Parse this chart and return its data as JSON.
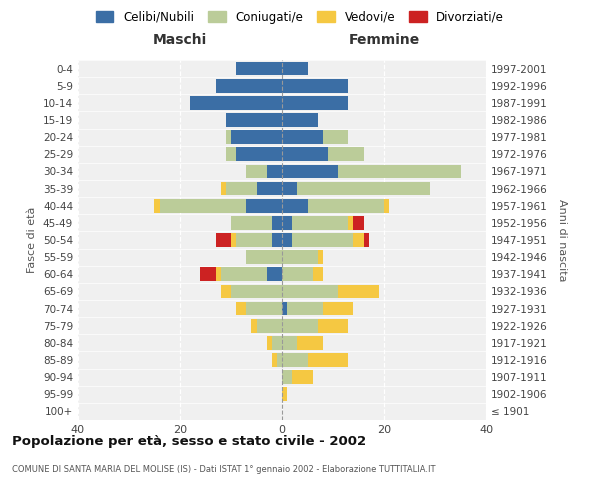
{
  "age_groups": [
    "100+",
    "95-99",
    "90-94",
    "85-89",
    "80-84",
    "75-79",
    "70-74",
    "65-69",
    "60-64",
    "55-59",
    "50-54",
    "45-49",
    "40-44",
    "35-39",
    "30-34",
    "25-29",
    "20-24",
    "15-19",
    "10-14",
    "5-9",
    "0-4"
  ],
  "birth_years": [
    "≤ 1901",
    "1902-1906",
    "1907-1911",
    "1912-1916",
    "1917-1921",
    "1922-1926",
    "1927-1931",
    "1932-1936",
    "1937-1941",
    "1942-1946",
    "1947-1951",
    "1952-1956",
    "1957-1961",
    "1962-1966",
    "1967-1971",
    "1972-1976",
    "1977-1981",
    "1982-1986",
    "1987-1991",
    "1992-1996",
    "1997-2001"
  ],
  "maschi": {
    "celibi": [
      0,
      0,
      0,
      0,
      0,
      0,
      0,
      0,
      3,
      0,
      2,
      2,
      7,
      5,
      3,
      9,
      10,
      11,
      18,
      13,
      9
    ],
    "coniugati": [
      0,
      0,
      0,
      1,
      2,
      5,
      7,
      10,
      9,
      7,
      7,
      8,
      17,
      6,
      4,
      2,
      1,
      0,
      0,
      0,
      0
    ],
    "vedovi": [
      0,
      0,
      0,
      1,
      1,
      1,
      2,
      2,
      1,
      0,
      1,
      0,
      1,
      1,
      0,
      0,
      0,
      0,
      0,
      0,
      0
    ],
    "divorziati": [
      0,
      0,
      0,
      0,
      0,
      0,
      0,
      0,
      3,
      0,
      3,
      0,
      0,
      0,
      0,
      0,
      0,
      0,
      0,
      0,
      0
    ]
  },
  "femmine": {
    "nubili": [
      0,
      0,
      0,
      0,
      0,
      0,
      1,
      0,
      0,
      0,
      2,
      2,
      5,
      3,
      11,
      9,
      8,
      7,
      13,
      13,
      5
    ],
    "coniugate": [
      0,
      0,
      2,
      5,
      3,
      7,
      7,
      11,
      6,
      7,
      12,
      11,
      15,
      26,
      24,
      7,
      5,
      0,
      0,
      0,
      0
    ],
    "vedove": [
      0,
      1,
      4,
      8,
      5,
      6,
      6,
      8,
      2,
      1,
      2,
      1,
      1,
      0,
      0,
      0,
      0,
      0,
      0,
      0,
      0
    ],
    "divorziate": [
      0,
      0,
      0,
      0,
      0,
      0,
      0,
      0,
      0,
      0,
      1,
      2,
      0,
      0,
      0,
      0,
      0,
      0,
      0,
      0,
      0
    ]
  },
  "colors": {
    "celibi_nubili": "#3B6EA5",
    "coniugati": "#BBCC99",
    "vedovi": "#F5C842",
    "divorziati": "#CC2222"
  },
  "xlim": 40,
  "title": "Popolazione per età, sesso e stato civile - 2002",
  "subtitle": "COMUNE DI SANTA MARIA DEL MOLISE (IS) - Dati ISTAT 1° gennaio 2002 - Elaborazione TUTTITALIA.IT",
  "ylabel_left": "Fasce di età",
  "ylabel_right": "Anni di nascita",
  "legend_labels": [
    "Celibi/Nubili",
    "Coniugati/e",
    "Vedovi/e",
    "Divorziati/e"
  ],
  "maschi_label": "Maschi",
  "femmine_label": "Femmine",
  "bg_color": "#FFFFFF",
  "plot_bg_color": "#F0F0F0"
}
